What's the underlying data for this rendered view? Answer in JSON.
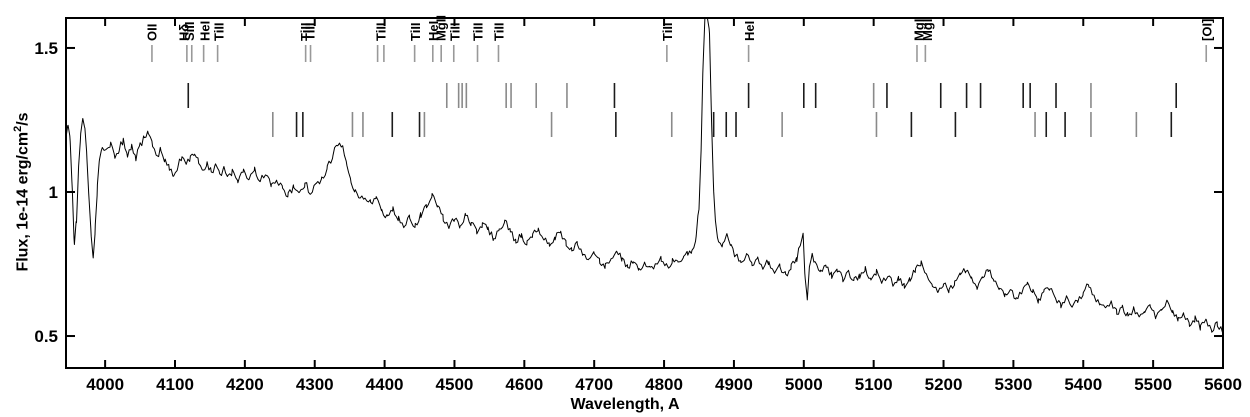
{
  "chart_data": {
    "type": "line",
    "description": "Optical spectrum with identified spectral lines",
    "xlabel": "Wavelength, A",
    "ylabel_prefix": "Flux, 1e-14 erg/cm",
    "ylabel_sup": "2",
    "ylabel_suffix": "/s",
    "x_range": [
      3944,
      5600
    ],
    "y_range": [
      0.389,
      1.604
    ],
    "x_ticks": [
      4000,
      4100,
      4200,
      4300,
      4400,
      4500,
      4600,
      4700,
      4800,
      4900,
      5000,
      5100,
      5200,
      5300,
      5400,
      5500,
      5600
    ],
    "y_ticks": [
      {
        "v": 0.5,
        "label": "0.5"
      },
      {
        "v": 1.0,
        "label": "1"
      },
      {
        "v": 1.5,
        "label": "1.5"
      }
    ],
    "grid": false,
    "legend": "none",
    "line_color": "#000000",
    "label_tick_color": "#999999",
    "row_tick_dark_color": "#1c1c1c",
    "row_tick_gray_color": "#8a8a8a",
    "line_labels": [
      {
        "text": "OII",
        "x": 4067,
        "ticks": [
          4067
        ]
      },
      {
        "text": "Hδ",
        "x": 4113,
        "ticks": [
          4117
        ]
      },
      {
        "text": "SiII",
        "x": 4121,
        "ticks": [
          4124
        ]
      },
      {
        "text": "HeI",
        "x": 4143,
        "ticks": [
          4141
        ]
      },
      {
        "text": "TiII",
        "x": 4163,
        "ticks": [
          4161
        ]
      },
      {
        "text": "TiII",
        "x": 4287,
        "ticks": [
          4287
        ]
      },
      {
        "text": "TiII",
        "x": 4293,
        "ticks": [
          4294
        ]
      },
      {
        "text": "TiII",
        "x": 4395,
        "ticks": [
          4390,
          4399
        ]
      },
      {
        "text": "TiII",
        "x": 4444,
        "ticks": [
          4443
        ]
      },
      {
        "text": "HeI",
        "x": 4470,
        "ticks": [
          4469
        ]
      },
      {
        "text": "MgII",
        "x": 4481,
        "ticks": [
          4481
        ]
      },
      {
        "text": "TiII",
        "x": 4501,
        "ticks": [
          4499
        ]
      },
      {
        "text": "TiII",
        "x": 4534,
        "ticks": [
          4533
        ]
      },
      {
        "text": "TiII",
        "x": 4564,
        "ticks": [
          4563
        ]
      },
      {
        "text": "TiII",
        "x": 4805,
        "ticks": [
          4804
        ]
      },
      {
        "text": "HeI",
        "x": 4922,
        "ticks": [
          4921
        ]
      },
      {
        "text": "MgI",
        "x": 5165,
        "ticks": [
          5162
        ]
      },
      {
        "text": "MgI",
        "x": 5177,
        "ticks": [
          5174
        ]
      },
      {
        "text": "[OI]",
        "x": 5577,
        "ticks": [
          5576
        ]
      }
    ],
    "tick_row_upper": {
      "dark": [
        4119,
        4729,
        4921,
        5000,
        5017,
        5119,
        5196,
        5233,
        5253,
        5314,
        5324,
        5361,
        5533
      ],
      "gray": [
        4489,
        4506,
        4511,
        4517,
        4574,
        4581,
        4617,
        4661,
        5100,
        5411
      ]
    },
    "tick_row_lower": {
      "dark": [
        4274,
        4283,
        4411,
        4450,
        4731,
        4871,
        4889,
        4903,
        5154,
        5217,
        5347,
        5374,
        5526
      ],
      "gray": [
        4240,
        4354,
        4369,
        4457,
        4639,
        4811,
        4969,
        5104,
        5331,
        5411,
        5476
      ]
    },
    "noise_amplitude": 0.012,
    "noise_step": 2.5,
    "spectrum": [
      [
        3944,
        1.2
      ],
      [
        3947,
        1.24
      ],
      [
        3950,
        1.18
      ],
      [
        3953,
        1.0
      ],
      [
        3956,
        0.82
      ],
      [
        3959,
        0.9
      ],
      [
        3962,
        1.08
      ],
      [
        3965,
        1.2
      ],
      [
        3968,
        1.25
      ],
      [
        3971,
        1.22
      ],
      [
        3974,
        1.12
      ],
      [
        3977,
        0.98
      ],
      [
        3980,
        0.85
      ],
      [
        3983,
        0.78
      ],
      [
        3986,
        0.88
      ],
      [
        3989,
        1.02
      ],
      [
        3992,
        1.12
      ],
      [
        3996,
        1.16
      ],
      [
        4002,
        1.14
      ],
      [
        4008,
        1.17
      ],
      [
        4014,
        1.12
      ],
      [
        4020,
        1.15
      ],
      [
        4026,
        1.18
      ],
      [
        4032,
        1.13
      ],
      [
        4038,
        1.16
      ],
      [
        4044,
        1.12
      ],
      [
        4050,
        1.16
      ],
      [
        4056,
        1.19
      ],
      [
        4062,
        1.21
      ],
      [
        4068,
        1.16
      ],
      [
        4074,
        1.12
      ],
      [
        4080,
        1.15
      ],
      [
        4086,
        1.11
      ],
      [
        4092,
        1.08
      ],
      [
        4098,
        1.06
      ],
      [
        4104,
        1.09
      ],
      [
        4110,
        1.12
      ],
      [
        4116,
        1.09
      ],
      [
        4122,
        1.12
      ],
      [
        4128,
        1.14
      ],
      [
        4134,
        1.1
      ],
      [
        4140,
        1.07
      ],
      [
        4146,
        1.1
      ],
      [
        4152,
        1.07
      ],
      [
        4158,
        1.09
      ],
      [
        4164,
        1.06
      ],
      [
        4170,
        1.08
      ],
      [
        4176,
        1.05
      ],
      [
        4182,
        1.07
      ],
      [
        4190,
        1.04
      ],
      [
        4198,
        1.07
      ],
      [
        4206,
        1.05
      ],
      [
        4214,
        1.08
      ],
      [
        4222,
        1.04
      ],
      [
        4230,
        1.06
      ],
      [
        4238,
        1.02
      ],
      [
        4246,
        1.04
      ],
      [
        4254,
        1.01
      ],
      [
        4262,
        0.99
      ],
      [
        4270,
        1.02
      ],
      [
        4278,
        1.0
      ],
      [
        4286,
        1.03
      ],
      [
        4294,
        1.0
      ],
      [
        4302,
        1.02
      ],
      [
        4310,
        1.05
      ],
      [
        4318,
        1.08
      ],
      [
        4326,
        1.13
      ],
      [
        4333,
        1.17
      ],
      [
        4340,
        1.15
      ],
      [
        4346,
        1.09
      ],
      [
        4352,
        1.04
      ],
      [
        4358,
        1.0
      ],
      [
        4365,
        0.97
      ],
      [
        4372,
        0.99
      ],
      [
        4380,
        0.96
      ],
      [
        4388,
        0.98
      ],
      [
        4396,
        0.94
      ],
      [
        4404,
        0.91
      ],
      [
        4412,
        0.94
      ],
      [
        4420,
        0.91
      ],
      [
        4428,
        0.88
      ],
      [
        4436,
        0.91
      ],
      [
        4444,
        0.88
      ],
      [
        4452,
        0.92
      ],
      [
        4460,
        0.95
      ],
      [
        4468,
        0.99
      ],
      [
        4476,
        0.95
      ],
      [
        4484,
        0.91
      ],
      [
        4492,
        0.88
      ],
      [
        4500,
        0.91
      ],
      [
        4508,
        0.88
      ],
      [
        4516,
        0.92
      ],
      [
        4524,
        0.89
      ],
      [
        4532,
        0.86
      ],
      [
        4540,
        0.89
      ],
      [
        4548,
        0.87
      ],
      [
        4556,
        0.84
      ],
      [
        4564,
        0.87
      ],
      [
        4572,
        0.9
      ],
      [
        4580,
        0.86
      ],
      [
        4588,
        0.83
      ],
      [
        4596,
        0.85
      ],
      [
        4604,
        0.82
      ],
      [
        4612,
        0.85
      ],
      [
        4620,
        0.87
      ],
      [
        4628,
        0.84
      ],
      [
        4636,
        0.81
      ],
      [
        4644,
        0.84
      ],
      [
        4652,
        0.86
      ],
      [
        4660,
        0.82
      ],
      [
        4668,
        0.8
      ],
      [
        4676,
        0.82
      ],
      [
        4684,
        0.79
      ],
      [
        4692,
        0.77
      ],
      [
        4700,
        0.79
      ],
      [
        4708,
        0.76
      ],
      [
        4716,
        0.74
      ],
      [
        4724,
        0.77
      ],
      [
        4732,
        0.8
      ],
      [
        4740,
        0.77
      ],
      [
        4748,
        0.74
      ],
      [
        4756,
        0.76
      ],
      [
        4764,
        0.73
      ],
      [
        4772,
        0.75
      ],
      [
        4780,
        0.73
      ],
      [
        4788,
        0.75
      ],
      [
        4796,
        0.77
      ],
      [
        4804,
        0.74
      ],
      [
        4812,
        0.76
      ],
      [
        4820,
        0.75
      ],
      [
        4828,
        0.77
      ],
      [
        4834,
        0.79
      ],
      [
        4840,
        0.8
      ],
      [
        4846,
        0.84
      ],
      [
        4850,
        0.95
      ],
      [
        4853,
        1.15
      ],
      [
        4856,
        1.45
      ],
      [
        4859,
        1.66
      ],
      [
        4862,
        1.68
      ],
      [
        4865,
        1.55
      ],
      [
        4868,
        1.25
      ],
      [
        4871,
        1.0
      ],
      [
        4874,
        0.88
      ],
      [
        4878,
        0.83
      ],
      [
        4884,
        0.81
      ],
      [
        4890,
        0.85
      ],
      [
        4896,
        0.81
      ],
      [
        4902,
        0.78
      ],
      [
        4910,
        0.76
      ],
      [
        4918,
        0.78
      ],
      [
        4926,
        0.75
      ],
      [
        4934,
        0.77
      ],
      [
        4942,
        0.74
      ],
      [
        4950,
        0.76
      ],
      [
        4958,
        0.72
      ],
      [
        4966,
        0.74
      ],
      [
        4974,
        0.71
      ],
      [
        4982,
        0.74
      ],
      [
        4990,
        0.77
      ],
      [
        4995,
        0.82
      ],
      [
        4999,
        0.86
      ],
      [
        5002,
        0.7
      ],
      [
        5005,
        0.62
      ],
      [
        5008,
        0.74
      ],
      [
        5012,
        0.79
      ],
      [
        5016,
        0.75
      ],
      [
        5024,
        0.72
      ],
      [
        5032,
        0.74
      ],
      [
        5040,
        0.71
      ],
      [
        5048,
        0.73
      ],
      [
        5056,
        0.7
      ],
      [
        5064,
        0.72
      ],
      [
        5072,
        0.69
      ],
      [
        5080,
        0.71
      ],
      [
        5088,
        0.73
      ],
      [
        5096,
        0.7
      ],
      [
        5104,
        0.72
      ],
      [
        5112,
        0.69
      ],
      [
        5120,
        0.71
      ],
      [
        5128,
        0.68
      ],
      [
        5136,
        0.7
      ],
      [
        5144,
        0.67
      ],
      [
        5152,
        0.7
      ],
      [
        5160,
        0.73
      ],
      [
        5168,
        0.75
      ],
      [
        5176,
        0.71
      ],
      [
        5184,
        0.68
      ],
      [
        5192,
        0.66
      ],
      [
        5200,
        0.68
      ],
      [
        5208,
        0.66
      ],
      [
        5216,
        0.68
      ],
      [
        5224,
        0.71
      ],
      [
        5232,
        0.73
      ],
      [
        5240,
        0.7
      ],
      [
        5248,
        0.67
      ],
      [
        5256,
        0.7
      ],
      [
        5264,
        0.73
      ],
      [
        5272,
        0.69
      ],
      [
        5280,
        0.66
      ],
      [
        5288,
        0.64
      ],
      [
        5296,
        0.66
      ],
      [
        5304,
        0.63
      ],
      [
        5312,
        0.66
      ],
      [
        5320,
        0.69
      ],
      [
        5328,
        0.65
      ],
      [
        5336,
        0.62
      ],
      [
        5344,
        0.65
      ],
      [
        5352,
        0.67
      ],
      [
        5360,
        0.63
      ],
      [
        5368,
        0.61
      ],
      [
        5376,
        0.63
      ],
      [
        5384,
        0.6
      ],
      [
        5392,
        0.62
      ],
      [
        5400,
        0.65
      ],
      [
        5408,
        0.68
      ],
      [
        5416,
        0.64
      ],
      [
        5424,
        0.61
      ],
      [
        5432,
        0.59
      ],
      [
        5440,
        0.61
      ],
      [
        5448,
        0.58
      ],
      [
        5456,
        0.6
      ],
      [
        5464,
        0.57
      ],
      [
        5472,
        0.59
      ],
      [
        5480,
        0.56
      ],
      [
        5488,
        0.58
      ],
      [
        5496,
        0.6
      ],
      [
        5504,
        0.57
      ],
      [
        5512,
        0.59
      ],
      [
        5520,
        0.62
      ],
      [
        5528,
        0.59
      ],
      [
        5536,
        0.56
      ],
      [
        5544,
        0.58
      ],
      [
        5552,
        0.54
      ],
      [
        5560,
        0.56
      ],
      [
        5568,
        0.53
      ],
      [
        5576,
        0.55
      ],
      [
        5584,
        0.52
      ],
      [
        5592,
        0.54
      ],
      [
        5600,
        0.52
      ]
    ]
  }
}
